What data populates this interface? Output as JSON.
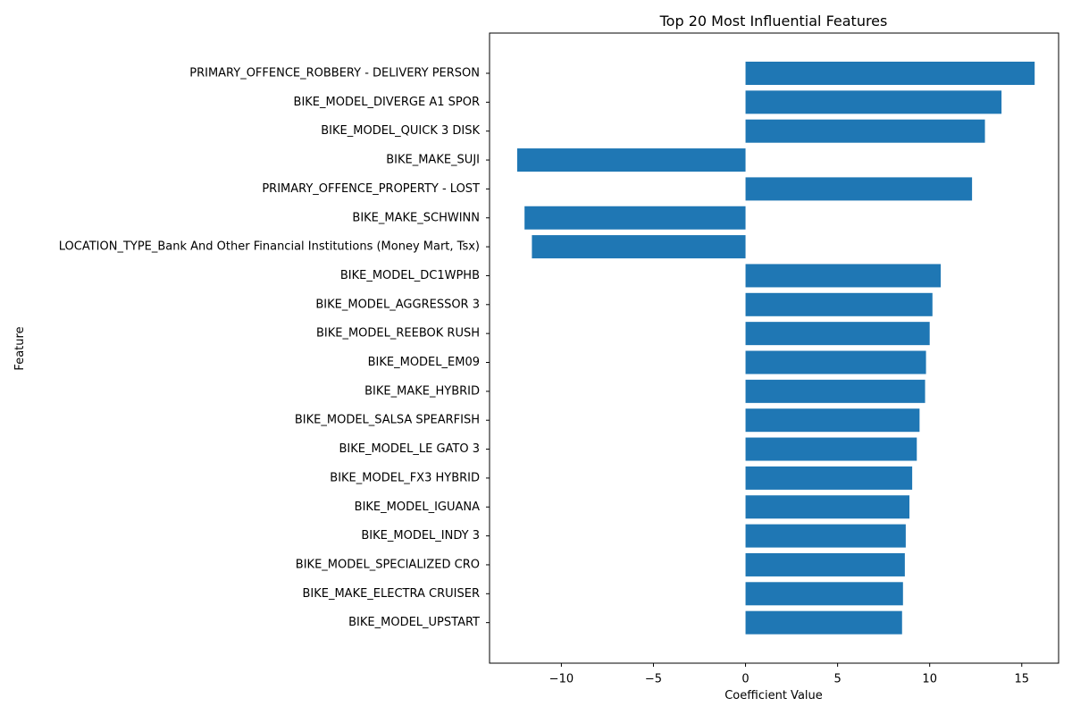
{
  "chart_data": {
    "type": "bar",
    "orientation": "horizontal",
    "title": "Top 20 Most Influential Features",
    "xlabel": "Coefficient Value",
    "ylabel": "Feature",
    "xlim": [
      -13.9,
      17.0
    ],
    "xticks": [
      -10,
      -5,
      0,
      5,
      10,
      15
    ],
    "xtick_labels": [
      "−10",
      "−5",
      "0",
      "5",
      "10",
      "15"
    ],
    "grid": false,
    "bar_color": "#1f77b4",
    "categories": [
      "PRIMARY_OFFENCE_ROBBERY - DELIVERY PERSON",
      "BIKE_MODEL_DIVERGE A1 SPOR",
      "BIKE_MODEL_QUICK 3 DISK",
      "BIKE_MAKE_SUJI",
      "PRIMARY_OFFENCE_PROPERTY - LOST",
      "BIKE_MAKE_SCHWINN",
      "LOCATION_TYPE_Bank And Other Financial Institutions (Money Mart, Tsx)",
      "BIKE_MODEL_DC1WPHB",
      "BIKE_MODEL_AGGRESSOR 3",
      "BIKE_MODEL_REEBOK RUSH",
      "BIKE_MODEL_EM09",
      "BIKE_MAKE_HYBRID",
      "BIKE_MODEL_SALSA SPEARFISH",
      "BIKE_MODEL_LE GATO 3",
      "BIKE_MODEL_FX3 HYBRID",
      "BIKE_MODEL_IGUANA",
      "BIKE_MODEL_INDY 3",
      "BIKE_MODEL_SPECIALIZED CRO",
      "BIKE_MAKE_ELECTRA CRUISER",
      "BIKE_MODEL_UPSTART"
    ],
    "values": [
      15.7,
      13.9,
      13.0,
      -12.4,
      12.3,
      -12.0,
      -11.6,
      10.6,
      10.15,
      10.0,
      9.8,
      9.75,
      9.45,
      9.3,
      9.05,
      8.9,
      8.7,
      8.65,
      8.55,
      8.5
    ]
  }
}
